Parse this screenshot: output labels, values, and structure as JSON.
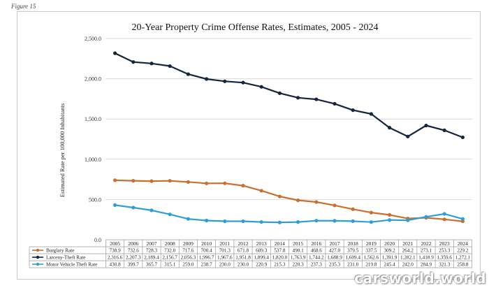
{
  "figure_label": "Figure 15",
  "watermark": "carsworld.world",
  "colors": {
    "burglary": "#C8702F",
    "larceny": "#12273D",
    "mvt": "#2E9FD6",
    "grid": "#d9d9d9"
  },
  "chart_data": {
    "type": "line",
    "title": "20-Year Property Crime Offense Rates, Estimates, 2005 - 2024",
    "xlabel": "",
    "ylabel": "Estimated Rate per 100,000 Inhabitants",
    "ylim": [
      0,
      2500
    ],
    "yticks": [
      "0.0",
      "500.0",
      "1,000.0",
      "1,500.0",
      "2,000.0",
      "2,500.0"
    ],
    "ytick_values": [
      0,
      500,
      1000,
      1500,
      2000,
      2500
    ],
    "categories": [
      "2005",
      "2006",
      "2007",
      "2008",
      "2009",
      "2010",
      "2011",
      "2012",
      "2013",
      "2014",
      "2015",
      "2016",
      "2017",
      "2018",
      "2019",
      "2020",
      "2021",
      "2022",
      "2023",
      "2024"
    ],
    "series": [
      {
        "name": "Burglary Rate",
        "color_key": "burglary",
        "values": [
          738.9,
          732.6,
          728.3,
          732.0,
          717.6,
          700.4,
          701.3,
          671.8,
          609.3,
          537.8,
          490.1,
          468.6,
          427.0,
          379.5,
          337.5,
          309.2,
          264.2,
          273.1,
          253.3,
          229.2
        ],
        "labels": [
          "738.9",
          "732.6",
          "728.3",
          "732.0",
          "717.6",
          "700.4",
          "701.3",
          "671.8",
          "609.3",
          "537.8",
          "490.1",
          "468.6",
          "427.0",
          "379.5",
          "337.5",
          "309.2",
          "264.2",
          "273.1",
          "253.3",
          "229.2"
        ]
      },
      {
        "name": "Larceny-Theft Rate",
        "color_key": "larceny",
        "values": [
          2316.6,
          2207.3,
          2189.4,
          2156.7,
          2056.3,
          1996.7,
          1967.6,
          1951.8,
          1899.4,
          1820.0,
          1763.9,
          1744.2,
          1688.9,
          1609.4,
          1562.6,
          1391.9,
          1282.1,
          1418.9,
          1359.6,
          1272.1
        ],
        "labels": [
          "2,316.6",
          "2,207.3",
          "2,189.4",
          "2,156.7",
          "2,056.3",
          "1,996.7",
          "1,967.6",
          "1,951.8",
          "1,899.4",
          "1,820.0",
          "1,763.9",
          "1,744.2",
          "1,688.9",
          "1,609.4",
          "1,562.6",
          "1,391.9",
          "1,282.1",
          "1,418.9",
          "1,359.6",
          "1,272.1"
        ]
      },
      {
        "name": "Motor Vehicle Theft Rate",
        "color_key": "mvt",
        "values": [
          430.8,
          399.7,
          365.7,
          315.1,
          259.0,
          238.7,
          230.0,
          230.0,
          220.9,
          215.3,
          220.3,
          237.3,
          235.3,
          231.0,
          219.8,
          245.4,
          242.0,
          284.9,
          321.3,
          258.8
        ],
        "labels": [
          "430.8",
          "399.7",
          "365.7",
          "315.1",
          "259.0",
          "238.7",
          "230.0",
          "230.0",
          "220.9",
          "215.3",
          "220.3",
          "237.3",
          "235.3",
          "231.0",
          "219.8",
          "245.4",
          "242.0",
          "284.9",
          "321.3",
          "258.8"
        ]
      }
    ],
    "legend": "table-below",
    "grid": true
  }
}
